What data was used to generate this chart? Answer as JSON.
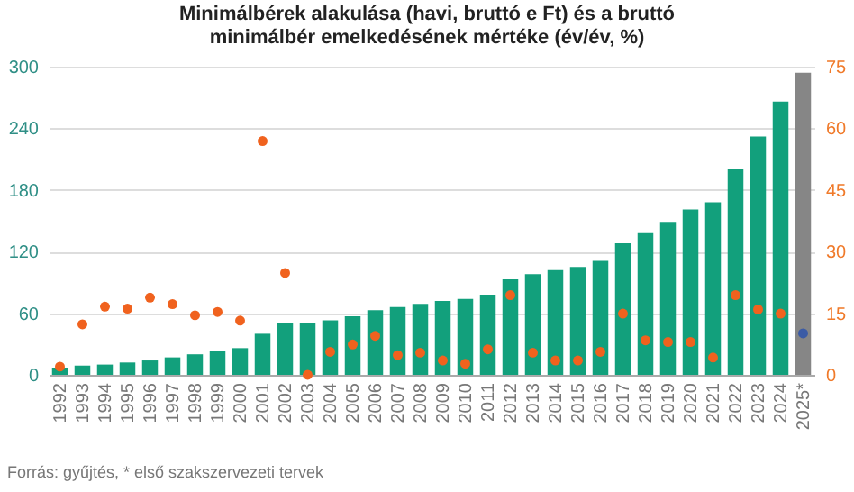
{
  "chart_data": {
    "type": "bar",
    "title": "Minimálbérek alakulása  (havi, bruttó e Ft) és a bruttó minimálbér emelkedésének mértéke (év/év, %)",
    "annotations": [
      "Forrás: gyűjtés, * első szakszervezeti tervek"
    ],
    "categories": [
      "1992",
      "1993",
      "1994",
      "1995",
      "1996",
      "1997",
      "1998",
      "1999",
      "2000",
      "2001",
      "2002",
      "2003",
      "2004",
      "2005",
      "2006",
      "2007",
      "2008",
      "2009",
      "2010",
      "2011",
      "2012",
      "2013",
      "2014",
      "2015",
      "2016",
      "2017",
      "2018",
      "2019",
      "2020",
      "2021",
      "2022",
      "2023",
      "2024",
      "2025*"
    ],
    "series": [
      {
        "values": [
          7,
          9,
          10,
          12,
          14,
          17,
          20,
          23,
          26,
          40,
          50,
          50,
          53,
          57,
          63,
          66,
          69,
          72,
          74,
          78,
          93,
          98,
          102,
          105,
          111,
          128,
          138,
          149,
          161,
          168,
          200,
          232,
          266,
          294
        ],
        "colors": [
          "#12a07c",
          "#12a07c",
          "#12a07c",
          "#12a07c",
          "#12a07c",
          "#12a07c",
          "#12a07c",
          "#12a07c",
          "#12a07c",
          "#12a07c",
          "#12a07c",
          "#12a07c",
          "#12a07c",
          "#12a07c",
          "#12a07c",
          "#12a07c",
          "#12a07c",
          "#12a07c",
          "#12a07c",
          "#12a07c",
          "#12a07c",
          "#12a07c",
          "#12a07c",
          "#12a07c",
          "#12a07c",
          "#12a07c",
          "#12a07c",
          "#12a07c",
          "#12a07c",
          "#12a07c",
          "#12a07c",
          "#12a07c",
          "#12a07c",
          "#868686"
        ]
      },
      {
        "type": "scatter",
        "axis": "y2",
        "values": [
          2,
          12.3,
          16.6,
          16.1,
          18.8,
          17.2,
          14.5,
          15.3,
          13.2,
          56.9,
          24.8,
          0,
          5.6,
          7.4,
          9.5,
          4.8,
          5.4,
          3.5,
          2.7,
          6.2,
          19.4,
          5.4,
          3.5,
          3.5,
          5.6,
          14.9,
          8.4,
          8,
          8,
          4.2,
          19.4,
          15.9,
          14.9,
          10.1
        ],
        "colors": [
          "#f0621e",
          "#f0621e",
          "#f0621e",
          "#f0621e",
          "#f0621e",
          "#f0621e",
          "#f0621e",
          "#f0621e",
          "#f0621e",
          "#f0621e",
          "#f0621e",
          "#f0621e",
          "#f0621e",
          "#f0621e",
          "#f0621e",
          "#f0621e",
          "#f0621e",
          "#f0621e",
          "#f0621e",
          "#f0621e",
          "#f0621e",
          "#f0621e",
          "#f0621e",
          "#f0621e",
          "#f0621e",
          "#f0621e",
          "#f0621e",
          "#f0621e",
          "#f0621e",
          "#f0621e",
          "#f0621e",
          "#f0621e",
          "#f0621e",
          "#3b5ba5"
        ]
      }
    ],
    "ylim": [
      0,
      300
    ],
    "yticks": [
      0,
      60,
      120,
      180,
      240,
      300
    ],
    "y2lim": [
      0,
      75
    ],
    "y2ticks": [
      0,
      15,
      30,
      45,
      60,
      75
    ],
    "grid": "y",
    "marker": "circle"
  }
}
